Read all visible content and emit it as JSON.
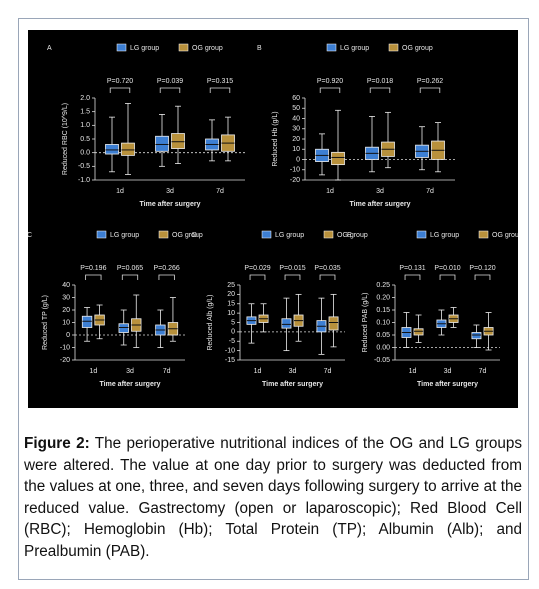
{
  "chart_data": [
    {
      "type": "box",
      "label": "A",
      "ylabel": "Reduced RBC (10^9/L)",
      "xlabel": "Time after surgery",
      "categories": [
        "1d",
        "3d",
        "7d"
      ],
      "series": [
        {
          "name": "LG group",
          "color": "#3d7fd3",
          "min": [
            -0.7,
            -0.5,
            -0.3
          ],
          "q1": [
            -0.05,
            0.05,
            0.1
          ],
          "median": [
            0.1,
            0.3,
            0.3
          ],
          "q3": [
            0.3,
            0.6,
            0.5
          ],
          "max": [
            1.3,
            1.4,
            1.2
          ]
        },
        {
          "name": "OG group",
          "color": "#b8913c",
          "min": [
            -0.8,
            -0.4,
            -0.3
          ],
          "q1": [
            -0.1,
            0.15,
            0.05
          ],
          "median": [
            0.1,
            0.4,
            0.35
          ],
          "q3": [
            0.35,
            0.7,
            0.65
          ],
          "max": [
            1.8,
            1.7,
            1.3
          ]
        }
      ],
      "pvalues": [
        "P=0.720",
        "P=0.039",
        "P=0.315"
      ],
      "ylim": [
        -1,
        2
      ],
      "yticks": [
        {
          "value": -1,
          "label": "-1.0"
        },
        -0.5,
        {
          "value": 0,
          "label": "0.0"
        },
        0.5,
        {
          "value": 1,
          "label": "1.0"
        },
        1.5,
        {
          "value": 2,
          "label": "2.0"
        }
      ]
    },
    {
      "type": "box",
      "label": "B",
      "ylabel": "Reduced Hb (g/L)",
      "xlabel": "Time after surgery",
      "categories": [
        "1d",
        "3d",
        "7d"
      ],
      "series": [
        {
          "name": "LG group",
          "color": "#3d7fd3",
          "min": [
            -15,
            -12,
            -10
          ],
          "q1": [
            -2,
            0,
            2
          ],
          "median": [
            4,
            6,
            8
          ],
          "q3": [
            10,
            12,
            14
          ],
          "max": [
            25,
            42,
            32
          ]
        },
        {
          "name": "OG group",
          "color": "#b8913c",
          "min": [
            -20,
            -8,
            -12
          ],
          "q1": [
            -5,
            3,
            0
          ],
          "median": [
            2,
            10,
            9
          ],
          "q3": [
            7,
            17,
            18
          ],
          "max": [
            48,
            46,
            36
          ]
        }
      ],
      "pvalues": [
        "P=0.920",
        "P=0.018",
        "P=0.262"
      ],
      "ylim": [
        -20,
        60
      ],
      "yticks": [
        -20,
        -10,
        0,
        10,
        20,
        30,
        40,
        50,
        60
      ]
    },
    {
      "type": "box",
      "label": "C",
      "ylabel": "Reduced TP (g/L)",
      "xlabel": "Time after surgery",
      "categories": [
        "1d",
        "3d",
        "7d"
      ],
      "series": [
        {
          "name": "LG group",
          "color": "#3d7fd3",
          "min": [
            -5,
            -8,
            -10
          ],
          "q1": [
            6,
            2,
            0
          ],
          "median": [
            11,
            6,
            4
          ],
          "q3": [
            15,
            9,
            8
          ],
          "max": [
            22,
            20,
            20
          ]
        },
        {
          "name": "OG group",
          "color": "#b8913c",
          "min": [
            -3,
            -10,
            -5
          ],
          "q1": [
            8,
            3,
            0
          ],
          "median": [
            12,
            8,
            5
          ],
          "q3": [
            16,
            13,
            10
          ],
          "max": [
            24,
            32,
            30
          ]
        }
      ],
      "pvalues": [
        "P=0.196",
        "P=0.065",
        "P=0.266"
      ],
      "ylim": [
        -20,
        40
      ],
      "yticks": [
        -20,
        -10,
        0,
        10,
        20,
        30,
        40
      ]
    },
    {
      "type": "box",
      "label": "D",
      "ylabel": "Reduced Alb (g/L)",
      "xlabel": "Time after surgery",
      "categories": [
        "1d",
        "3d",
        "7d"
      ],
      "series": [
        {
          "name": "LG group",
          "color": "#3d7fd3",
          "min": [
            -6,
            -10,
            -12
          ],
          "q1": [
            4,
            2,
            0
          ],
          "median": [
            6,
            4,
            3
          ],
          "q3": [
            8,
            7,
            6
          ],
          "max": [
            15,
            18,
            18
          ]
        },
        {
          "name": "OG group",
          "color": "#b8913c",
          "min": [
            0,
            -5,
            -8
          ],
          "q1": [
            5,
            3,
            1
          ],
          "median": [
            7,
            6,
            5
          ],
          "q3": [
            9,
            9,
            8
          ],
          "max": [
            15,
            20,
            20
          ]
        }
      ],
      "pvalues": [
        "P=0.029",
        "P=0.015",
        "P=0.035"
      ],
      "ylim": [
        -15,
        25
      ],
      "yticks": [
        -15,
        -10,
        -5,
        0,
        5,
        10,
        15,
        20,
        25
      ]
    },
    {
      "type": "box",
      "label": "E",
      "ylabel": "Reduced PAB (g/L)",
      "xlabel": "Time after surgery",
      "categories": [
        "1d",
        "3d",
        "7d"
      ],
      "series": [
        {
          "name": "LG group",
          "color": "#3d7fd3",
          "min": [
            0,
            0.05,
            0
          ],
          "q1": [
            0.04,
            0.08,
            0.035
          ],
          "median": [
            0.06,
            0.095,
            0.05
          ],
          "q3": [
            0.08,
            0.11,
            0.06
          ],
          "max": [
            0.14,
            0.15,
            0.09
          ]
        },
        {
          "name": "OG group",
          "color": "#b8913c",
          "min": [
            0.02,
            0.08,
            -0.01
          ],
          "q1": [
            0.05,
            0.1,
            0.05
          ],
          "median": [
            0.065,
            0.115,
            0.065
          ],
          "q3": [
            0.075,
            0.13,
            0.08
          ],
          "max": [
            0.13,
            0.16,
            0.14
          ]
        }
      ],
      "pvalues": [
        "P=0.131",
        "P=0.010",
        "P=0.120"
      ],
      "ylim": [
        -0.05,
        0.25
      ],
      "yticks": [
        -0.05,
        {
          "value": 0,
          "label": "0.00"
        },
        0.05,
        {
          "value": 0.1,
          "label": "0.10"
        },
        0.15,
        {
          "value": 0.2,
          "label": "0.20"
        },
        0.25
      ]
    }
  ],
  "caption": {
    "label": "Figure 2:",
    "text": "The perioperative nutritional indices of the OG and LG groups were altered. The value at one day prior to surgery was deducted from the values at one, three, and seven days following surgery to arrive at the reduced value. Gastrectomy (open or laparoscopic); Red Blood Cell (RBC); Hemoglobin (Hb); Total Protein (TP); Albumin (Alb); and Prealbumin (PAB)."
  }
}
